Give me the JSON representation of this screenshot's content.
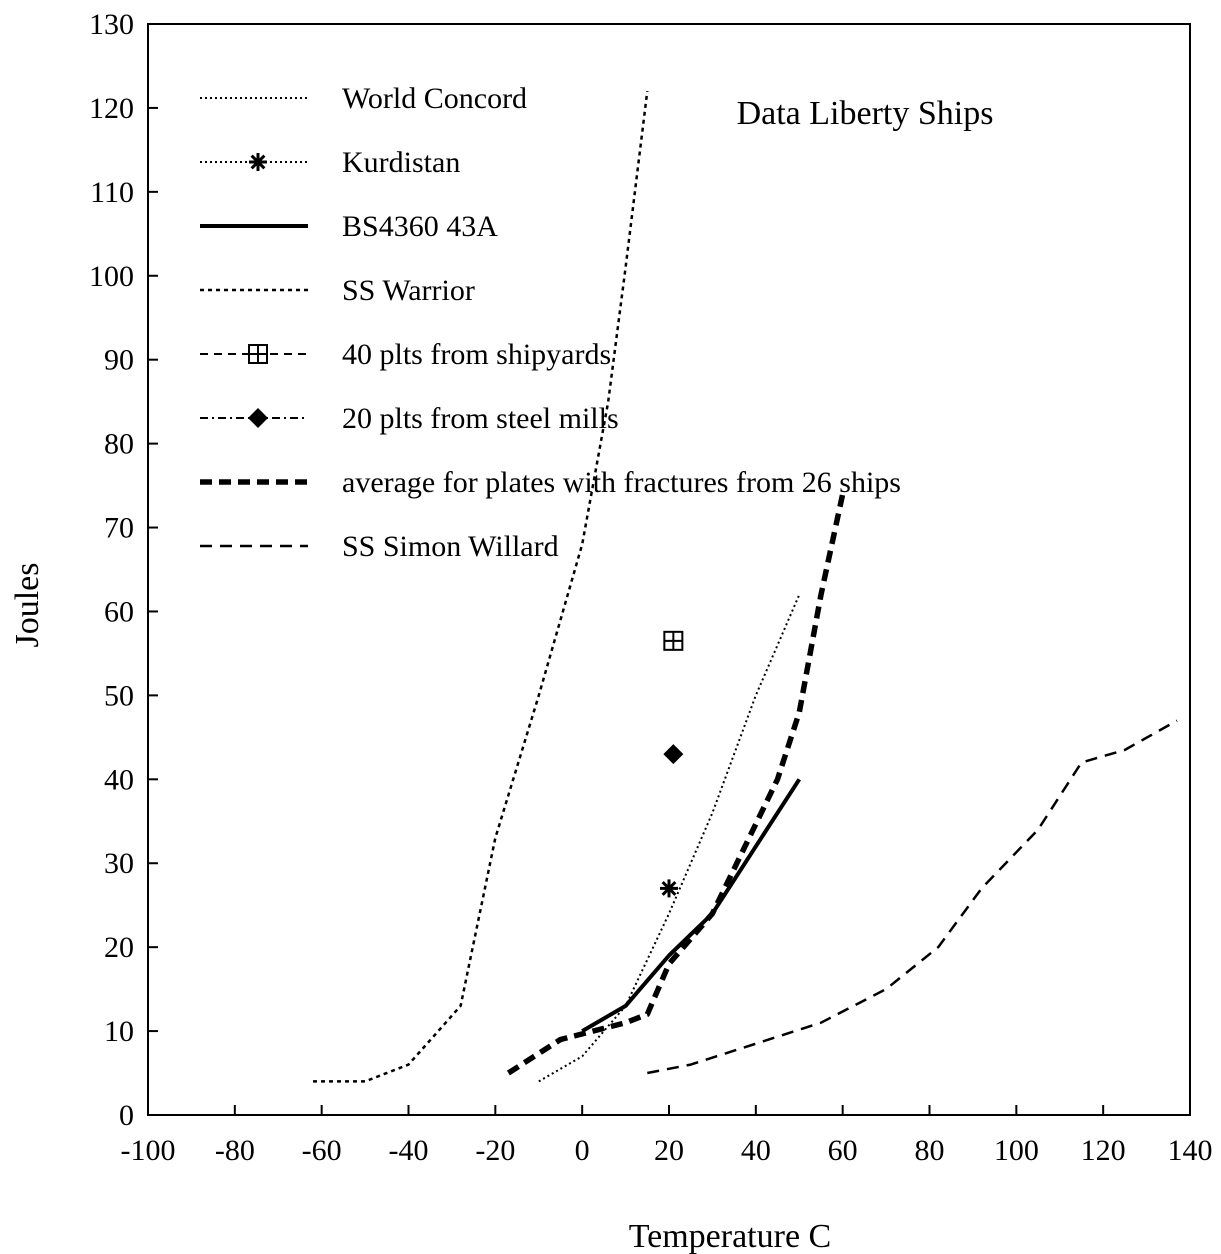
{
  "chart_data": {
    "type": "line",
    "title": "Data Liberty Ships",
    "xlabel": "Temperature C",
    "ylabel": "Joules",
    "xlim": [
      -100,
      140
    ],
    "ylim": [
      0,
      130
    ],
    "x_ticks": [
      "-100",
      "-80",
      "-60",
      "-40",
      "-20",
      "0",
      "20",
      "40",
      "60",
      "80",
      "100",
      "120",
      "140"
    ],
    "y_ticks": [
      "0",
      "10",
      "20",
      "30",
      "40",
      "50",
      "60",
      "70",
      "80",
      "90",
      "100",
      "110",
      "120",
      "130"
    ],
    "grid": false,
    "legend_position": "top-left",
    "series": [
      {
        "name": "World Concord",
        "style": "dotted",
        "points": [
          [
            -10,
            4
          ],
          [
            0,
            7
          ],
          [
            10,
            13
          ],
          [
            20,
            24
          ],
          [
            30,
            36
          ],
          [
            40,
            50
          ],
          [
            50,
            62
          ]
        ]
      },
      {
        "name": "Kurdistan",
        "style": "asterisk-marker",
        "points": [
          [
            20,
            27
          ]
        ]
      },
      {
        "name": "BS4360 43A",
        "style": "solid-thick",
        "points": [
          [
            0,
            10
          ],
          [
            10,
            13
          ],
          [
            20,
            19
          ],
          [
            30,
            24
          ],
          [
            40,
            32
          ],
          [
            50,
            40
          ]
        ]
      },
      {
        "name": "SS Warrior",
        "style": "short-dash",
        "points": [
          [
            -62,
            4
          ],
          [
            -50,
            4
          ],
          [
            -40,
            6
          ],
          [
            -28,
            13
          ],
          [
            -20,
            33
          ],
          [
            -10,
            50
          ],
          [
            0,
            68
          ],
          [
            6,
            85
          ],
          [
            10,
            101
          ],
          [
            15,
            122
          ]
        ]
      },
      {
        "name": "40 plts from shipyards",
        "style": "boxed-plus-marker",
        "points": [
          [
            21,
            56.5
          ]
        ]
      },
      {
        "name": "20 plts from steel mills",
        "style": "diamond-marker",
        "points": [
          [
            21,
            43
          ]
        ]
      },
      {
        "name": "average for plates with fractures from 26 ships",
        "style": "dash-thick",
        "points": [
          [
            -17,
            5
          ],
          [
            -5,
            9
          ],
          [
            10,
            11
          ],
          [
            15,
            12
          ],
          [
            20,
            18
          ],
          [
            30,
            24
          ],
          [
            45,
            40
          ],
          [
            50,
            48
          ],
          [
            55,
            62
          ],
          [
            60,
            74
          ]
        ]
      },
      {
        "name": "SS Simon Willard",
        "style": "long-dash",
        "points": [
          [
            15,
            5
          ],
          [
            25,
            6
          ],
          [
            40,
            8.5
          ],
          [
            55,
            11
          ],
          [
            70,
            15
          ],
          [
            82,
            20
          ],
          [
            92,
            27
          ],
          [
            105,
            34
          ],
          [
            115,
            42
          ],
          [
            125,
            43.5
          ],
          [
            137,
            47
          ]
        ]
      }
    ]
  }
}
